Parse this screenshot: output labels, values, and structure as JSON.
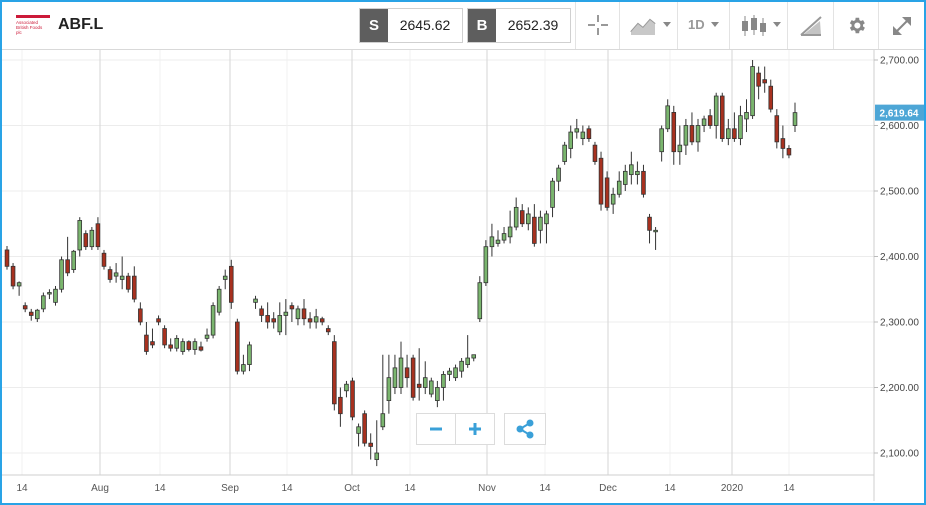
{
  "header": {
    "logo_lines": [
      "Associated",
      "British Foods",
      "plc"
    ],
    "symbol": "ABF.L",
    "sell": {
      "label": "S",
      "price": "2645.62"
    },
    "buy": {
      "label": "B",
      "price": "2652.39"
    },
    "timeframe": "1D",
    "icons": [
      "crosshair-icon",
      "chart-type-icon",
      "candlestick-icon",
      "draw-icon",
      "gear-icon",
      "fullscreen-icon"
    ]
  },
  "colors": {
    "up": "#7ab56e",
    "down": "#a8311f",
    "accent": "#29a3e6",
    "price_tag": "#4da6d6",
    "toolbar_tag": "#5e5e5e"
  },
  "chart_data": {
    "type": "candlestick",
    "y_ticks": [
      "2,700.00",
      "2,600.00",
      "2,500.00",
      "2,400.00",
      "2,300.00",
      "2,200.00",
      "2,100.00"
    ],
    "y_tick_values": [
      2700,
      2600,
      2500,
      2400,
      2300,
      2200,
      2100
    ],
    "x_ticks": [
      "14",
      "Aug",
      "14",
      "Sep",
      "14",
      "Oct",
      "14",
      "Nov",
      "14",
      "Dec",
      "14",
      "2020",
      "14"
    ],
    "current_price": "2,619.64",
    "current_value": 2619.64,
    "grid": true,
    "candles": [
      [
        2410,
        2416,
        2380,
        2385
      ],
      [
        2385,
        2390,
        2350,
        2355
      ],
      [
        2355,
        2362,
        2340,
        2360
      ],
      [
        2325,
        2330,
        2315,
        2320
      ],
      [
        2315,
        2320,
        2302,
        2310
      ],
      [
        2305,
        2320,
        2300,
        2318
      ],
      [
        2320,
        2345,
        2315,
        2340
      ],
      [
        2345,
        2350,
        2335,
        2345
      ],
      [
        2330,
        2355,
        2325,
        2350
      ],
      [
        2350,
        2400,
        2345,
        2395
      ],
      [
        2395,
        2430,
        2370,
        2375
      ],
      [
        2380,
        2410,
        2375,
        2408
      ],
      [
        2410,
        2460,
        2400,
        2455
      ],
      [
        2435,
        2440,
        2410,
        2415
      ],
      [
        2415,
        2445,
        2410,
        2440
      ],
      [
        2450,
        2460,
        2410,
        2415
      ],
      [
        2405,
        2410,
        2380,
        2385
      ],
      [
        2380,
        2385,
        2360,
        2365
      ],
      [
        2370,
        2390,
        2360,
        2375
      ],
      [
        2365,
        2400,
        2350,
        2370
      ],
      [
        2370,
        2375,
        2345,
        2350
      ],
      [
        2370,
        2385,
        2330,
        2335
      ],
      [
        2320,
        2330,
        2295,
        2300
      ],
      [
        2280,
        2300,
        2250,
        2255
      ],
      [
        2270,
        2290,
        2260,
        2265
      ],
      [
        2305,
        2310,
        2295,
        2300
      ],
      [
        2290,
        2295,
        2260,
        2265
      ],
      [
        2265,
        2275,
        2255,
        2260
      ],
      [
        2260,
        2280,
        2255,
        2275
      ],
      [
        2255,
        2275,
        2250,
        2270
      ],
      [
        2270,
        2272,
        2255,
        2258
      ],
      [
        2258,
        2275,
        2250,
        2270
      ],
      [
        2262,
        2270,
        2255,
        2257
      ],
      [
        2275,
        2290,
        2270,
        2280
      ],
      [
        2280,
        2330,
        2275,
        2325
      ],
      [
        2315,
        2355,
        2310,
        2350
      ],
      [
        2365,
        2380,
        2350,
        2370
      ],
      [
        2385,
        2395,
        2320,
        2330
      ],
      [
        2300,
        2305,
        2220,
        2225
      ],
      [
        2225,
        2250,
        2220,
        2235
      ],
      [
        2235,
        2270,
        2225,
        2265
      ],
      [
        2330,
        2340,
        2320,
        2335
      ],
      [
        2320,
        2325,
        2300,
        2310
      ],
      [
        2310,
        2330,
        2290,
        2300
      ],
      [
        2305,
        2315,
        2290,
        2300
      ],
      [
        2285,
        2330,
        2280,
        2310
      ],
      [
        2310,
        2335,
        2280,
        2315
      ],
      [
        2325,
        2330,
        2300,
        2320
      ],
      [
        2305,
        2325,
        2295,
        2320
      ],
      [
        2320,
        2335,
        2295,
        2305
      ],
      [
        2305,
        2315,
        2290,
        2300
      ],
      [
        2300,
        2320,
        2290,
        2308
      ],
      [
        2305,
        2308,
        2295,
        2300
      ],
      [
        2290,
        2295,
        2280,
        2285
      ],
      [
        2270,
        2280,
        2165,
        2175
      ],
      [
        2185,
        2200,
        2140,
        2160
      ],
      [
        2195,
        2210,
        2185,
        2205
      ],
      [
        2210,
        2215,
        2150,
        2155
      ],
      [
        2130,
        2145,
        2110,
        2140
      ],
      [
        2160,
        2165,
        2110,
        2115
      ],
      [
        2115,
        2130,
        2090,
        2110
      ],
      [
        2090,
        2150,
        2080,
        2100
      ],
      [
        2140,
        2250,
        2135,
        2160
      ],
      [
        2180,
        2250,
        2160,
        2215
      ],
      [
        2200,
        2250,
        2190,
        2230
      ],
      [
        2200,
        2270,
        2190,
        2245
      ],
      [
        2230,
        2250,
        2200,
        2215
      ],
      [
        2245,
        2250,
        2180,
        2185
      ],
      [
        2205,
        2260,
        2180,
        2200
      ],
      [
        2200,
        2240,
        2190,
        2215
      ],
      [
        2190,
        2215,
        2185,
        2210
      ],
      [
        2180,
        2210,
        2170,
        2200
      ],
      [
        2200,
        2225,
        2180,
        2220
      ],
      [
        2220,
        2230,
        2210,
        2225
      ],
      [
        2215,
        2235,
        2210,
        2230
      ],
      [
        2225,
        2245,
        2215,
        2240
      ],
      [
        2235,
        2280,
        2230,
        2245
      ],
      [
        2245,
        2250,
        2240,
        2250
      ],
      [
        2305,
        2370,
        2300,
        2360
      ],
      [
        2360,
        2425,
        2355,
        2415
      ],
      [
        2415,
        2450,
        2400,
        2430
      ],
      [
        2420,
        2440,
        2415,
        2425
      ],
      [
        2425,
        2445,
        2420,
        2435
      ],
      [
        2430,
        2470,
        2420,
        2445
      ],
      [
        2445,
        2490,
        2440,
        2475
      ],
      [
        2470,
        2480,
        2445,
        2450
      ],
      [
        2450,
        2475,
        2440,
        2465
      ],
      [
        2460,
        2480,
        2415,
        2420
      ],
      [
        2440,
        2470,
        2420,
        2460
      ],
      [
        2450,
        2470,
        2420,
        2465
      ],
      [
        2475,
        2520,
        2460,
        2515
      ],
      [
        2515,
        2540,
        2500,
        2535
      ],
      [
        2545,
        2575,
        2540,
        2570
      ],
      [
        2565,
        2600,
        2550,
        2590
      ],
      [
        2590,
        2610,
        2580,
        2595
      ],
      [
        2580,
        2600,
        2570,
        2590
      ],
      [
        2595,
        2600,
        2575,
        2580
      ],
      [
        2570,
        2575,
        2540,
        2545
      ],
      [
        2550,
        2560,
        2470,
        2480
      ],
      [
        2520,
        2530,
        2470,
        2475
      ],
      [
        2480,
        2505,
        2465,
        2495
      ],
      [
        2495,
        2530,
        2490,
        2515
      ],
      [
        2510,
        2540,
        2500,
        2530
      ],
      [
        2525,
        2560,
        2510,
        2540
      ],
      [
        2525,
        2545,
        2510,
        2530
      ],
      [
        2530,
        2540,
        2490,
        2495
      ],
      [
        2460,
        2465,
        2420,
        2440
      ],
      [
        2440,
        2445,
        2410,
        2440
      ],
      [
        2560,
        2600,
        2545,
        2595
      ],
      [
        2595,
        2640,
        2590,
        2630
      ],
      [
        2620,
        2630,
        2540,
        2560
      ],
      [
        2560,
        2600,
        2540,
        2570
      ],
      [
        2570,
        2610,
        2555,
        2600
      ],
      [
        2600,
        2620,
        2570,
        2575
      ],
      [
        2575,
        2610,
        2560,
        2600
      ],
      [
        2600,
        2615,
        2590,
        2610
      ],
      [
        2615,
        2625,
        2595,
        2600
      ],
      [
        2600,
        2650,
        2580,
        2645
      ],
      [
        2645,
        2650,
        2575,
        2580
      ],
      [
        2580,
        2610,
        2570,
        2595
      ],
      [
        2595,
        2620,
        2575,
        2580
      ],
      [
        2580,
        2630,
        2570,
        2615
      ],
      [
        2610,
        2640,
        2590,
        2620
      ],
      [
        2615,
        2700,
        2610,
        2690
      ],
      [
        2680,
        2690,
        2640,
        2660
      ],
      [
        2670,
        2690,
        2650,
        2665
      ],
      [
        2660,
        2670,
        2620,
        2625
      ],
      [
        2615,
        2625,
        2565,
        2575
      ],
      [
        2580,
        2600,
        2550,
        2565
      ],
      [
        2565,
        2570,
        2550,
        2555
      ],
      [
        2600,
        2635,
        2590,
        2619.64
      ]
    ]
  },
  "controls": {
    "zoom_out_icon": "minus-icon",
    "zoom_in_icon": "plus-icon",
    "share_icon": "share-icon"
  }
}
